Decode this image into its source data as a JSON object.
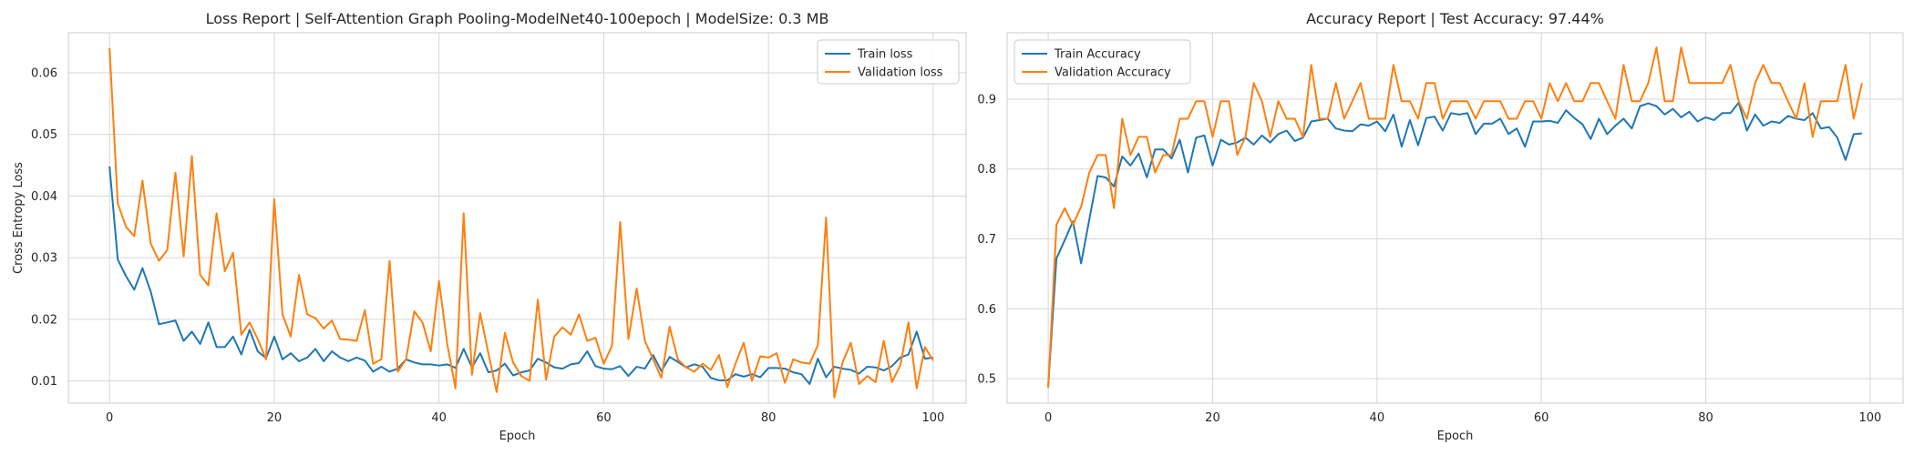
{
  "chart_data": [
    {
      "type": "line",
      "title": "Loss Report | Self-Attention Graph Pooling-ModelNet40-100epoch | ModelSize: 0.3 MB",
      "xlabel": "Epoch",
      "ylabel": "Cross Entropy Loss",
      "xlim": [
        -5,
        104
      ],
      "ylim": [
        0.0064,
        0.0665
      ],
      "xticks": [
        0,
        20,
        40,
        60,
        80,
        100
      ],
      "yticks": [
        0.01,
        0.02,
        0.03,
        0.04,
        0.05,
        0.06
      ],
      "grid": true,
      "legend": "top-right",
      "series": [
        {
          "name": "Train loss",
          "color": "#1f77b4",
          "values": [
            0.0448,
            0.0297,
            0.027,
            0.0248,
            0.0283,
            0.0245,
            0.0192,
            0.0195,
            0.0198,
            0.0165,
            0.018,
            0.016,
            0.0195,
            0.0155,
            0.0155,
            0.0172,
            0.0143,
            0.0183,
            0.0148,
            0.0137,
            0.0172,
            0.0135,
            0.0145,
            0.0132,
            0.0138,
            0.0152,
            0.0132,
            0.0148,
            0.0138,
            0.0132,
            0.0138,
            0.0133,
            0.0115,
            0.0123,
            0.0115,
            0.012,
            0.0135,
            0.013,
            0.0127,
            0.0127,
            0.0125,
            0.0127,
            0.0121,
            0.0152,
            0.0122,
            0.0145,
            0.0114,
            0.0117,
            0.0128,
            0.0109,
            0.0114,
            0.0117,
            0.0136,
            0.013,
            0.0122,
            0.012,
            0.0127,
            0.0129,
            0.0148,
            0.0124,
            0.012,
            0.0119,
            0.0124,
            0.0108,
            0.0123,
            0.012,
            0.0142,
            0.0116,
            0.0139,
            0.0131,
            0.0122,
            0.0127,
            0.0123,
            0.0105,
            0.0101,
            0.0101,
            0.0111,
            0.0107,
            0.0111,
            0.0106,
            0.0121,
            0.0121,
            0.012,
            0.0114,
            0.0111,
            0.0095,
            0.0136,
            0.0106,
            0.0123,
            0.012,
            0.0118,
            0.0112,
            0.0123,
            0.0122,
            0.0117,
            0.0124,
            0.0138,
            0.0143,
            0.018,
            0.0136,
            0.0138
          ]
        },
        {
          "name": "Validation loss",
          "color": "#ff7f0e",
          "values": [
            0.064,
            0.0388,
            0.035,
            0.0335,
            0.0425,
            0.0323,
            0.0295,
            0.0312,
            0.0438,
            0.0302,
            0.0465,
            0.0272,
            0.0255,
            0.0372,
            0.0278,
            0.0308,
            0.0175,
            0.0195,
            0.0168,
            0.0135,
            0.0395,
            0.0208,
            0.0172,
            0.0272,
            0.0208,
            0.0202,
            0.0185,
            0.0198,
            0.0168,
            0.0167,
            0.0165,
            0.0215,
            0.0128,
            0.0135,
            0.0295,
            0.0115,
            0.0135,
            0.0213,
            0.0195,
            0.0148,
            0.0262,
            0.016,
            0.0088,
            0.0372,
            0.011,
            0.021,
            0.0145,
            0.0082,
            0.0178,
            0.013,
            0.0108,
            0.01,
            0.0232,
            0.0102,
            0.0172,
            0.0187,
            0.0175,
            0.0208,
            0.0165,
            0.017,
            0.0128,
            0.0157,
            0.0358,
            0.0168,
            0.025,
            0.0165,
            0.0135,
            0.0105,
            0.0188,
            0.0135,
            0.0122,
            0.0115,
            0.0128,
            0.0118,
            0.0142,
            0.009,
            0.0128,
            0.0162,
            0.01,
            0.014,
            0.0138,
            0.0145,
            0.0097,
            0.0135,
            0.013,
            0.0128,
            0.0158,
            0.0365,
            0.0073,
            0.013,
            0.0162,
            0.0095,
            0.0108,
            0.0098,
            0.0165,
            0.0098,
            0.0125,
            0.0195,
            0.0088,
            0.0155,
            0.0133
          ]
        }
      ]
    },
    {
      "type": "line",
      "title": "Accuracy Report | Test Accuracy: 97.44%",
      "xlabel": "Epoch",
      "ylabel": "",
      "xlim": [
        -5,
        104
      ],
      "ylim": [
        0.465,
        0.995
      ],
      "xticks": [
        0,
        20,
        40,
        60,
        80,
        100
      ],
      "yticks": [
        0.5,
        0.6,
        0.7,
        0.8,
        0.9
      ],
      "grid": true,
      "legend": "top-left",
      "series": [
        {
          "name": "Train Accuracy",
          "color": "#1f77b4",
          "values": [
            0.49,
            0.672,
            0.698,
            0.725,
            0.665,
            0.728,
            0.79,
            0.788,
            0.775,
            0.818,
            0.805,
            0.822,
            0.788,
            0.828,
            0.828,
            0.815,
            0.842,
            0.795,
            0.845,
            0.848,
            0.805,
            0.842,
            0.835,
            0.838,
            0.845,
            0.835,
            0.848,
            0.838,
            0.85,
            0.855,
            0.84,
            0.845,
            0.868,
            0.87,
            0.872,
            0.858,
            0.855,
            0.854,
            0.864,
            0.862,
            0.868,
            0.854,
            0.878,
            0.832,
            0.87,
            0.834,
            0.873,
            0.875,
            0.855,
            0.88,
            0.878,
            0.88,
            0.85,
            0.865,
            0.865,
            0.872,
            0.85,
            0.858,
            0.832,
            0.868,
            0.868,
            0.869,
            0.866,
            0.884,
            0.873,
            0.864,
            0.843,
            0.872,
            0.85,
            0.862,
            0.872,
            0.858,
            0.89,
            0.894,
            0.89,
            0.878,
            0.886,
            0.874,
            0.882,
            0.868,
            0.874,
            0.87,
            0.88,
            0.88,
            0.895,
            0.855,
            0.878,
            0.862,
            0.868,
            0.866,
            0.876,
            0.872,
            0.87,
            0.88,
            0.858,
            0.86,
            0.845,
            0.813,
            0.85,
            0.851
          ]
        },
        {
          "name": "Validation Accuracy",
          "color": "#ff7f0e",
          "values": [
            0.487,
            0.72,
            0.744,
            0.72,
            0.746,
            0.795,
            0.82,
            0.82,
            0.744,
            0.872,
            0.82,
            0.846,
            0.846,
            0.795,
            0.82,
            0.82,
            0.872,
            0.872,
            0.897,
            0.897,
            0.846,
            0.897,
            0.897,
            0.82,
            0.846,
            0.923,
            0.897,
            0.846,
            0.897,
            0.872,
            0.872,
            0.846,
            0.949,
            0.872,
            0.872,
            0.923,
            0.872,
            0.897,
            0.923,
            0.872,
            0.872,
            0.872,
            0.949,
            0.897,
            0.897,
            0.872,
            0.923,
            0.923,
            0.872,
            0.897,
            0.897,
            0.897,
            0.872,
            0.897,
            0.897,
            0.897,
            0.872,
            0.872,
            0.897,
            0.897,
            0.872,
            0.923,
            0.897,
            0.923,
            0.897,
            0.897,
            0.923,
            0.923,
            0.897,
            0.872,
            0.949,
            0.897,
            0.897,
            0.923,
            0.974,
            0.897,
            0.897,
            0.974,
            0.923,
            0.923,
            0.923,
            0.923,
            0.923,
            0.949,
            0.897,
            0.872,
            0.923,
            0.949,
            0.923,
            0.923,
            0.897,
            0.872,
            0.923,
            0.846,
            0.897,
            0.897,
            0.897,
            0.949,
            0.872,
            0.923
          ]
        }
      ]
    }
  ]
}
